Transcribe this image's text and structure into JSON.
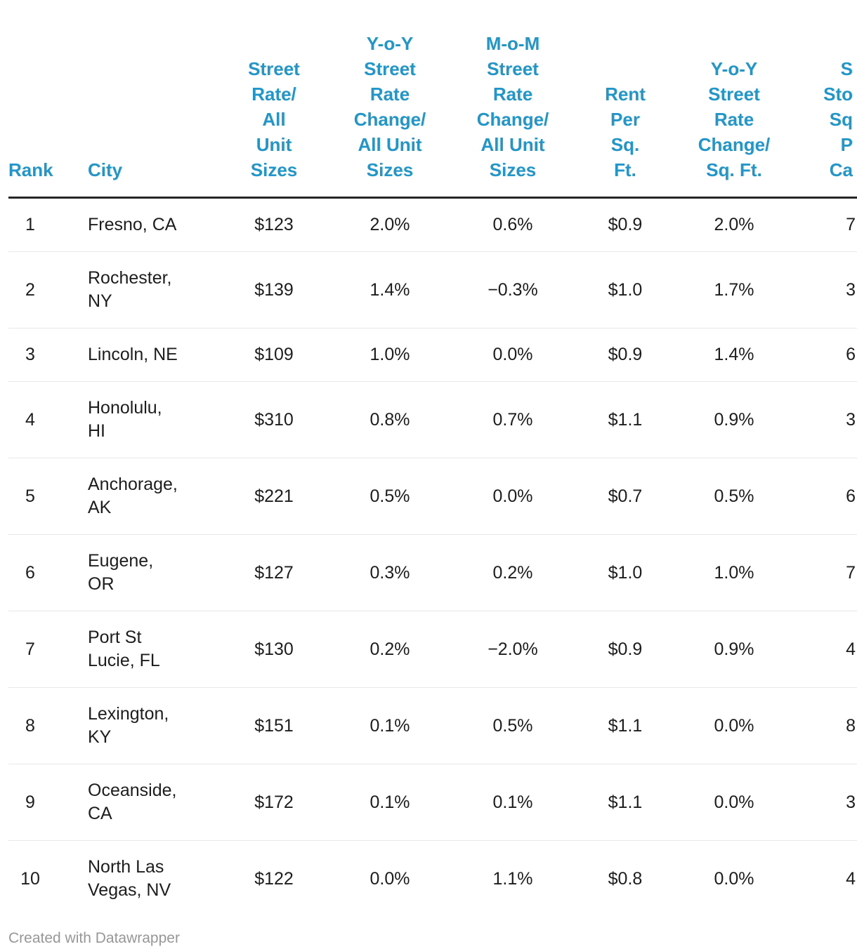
{
  "chart_data": {
    "type": "table",
    "columns": [
      {
        "id": "rank",
        "label": "Rank"
      },
      {
        "id": "city",
        "label": "City"
      },
      {
        "id": "street-rate",
        "label": "Street\nRate/\nAll\nUnit\nSizes"
      },
      {
        "id": "yoy-street-rate",
        "label": "Y-o-Y\nStreet\nRate\nChange/\nAll Unit\nSizes"
      },
      {
        "id": "mom-street-rate",
        "label": "M-o-M\nStreet\nRate\nChange/\nAll Unit\nSizes"
      },
      {
        "id": "rent-per-sqft",
        "label": "Rent\nPer\nSq.\nFt."
      },
      {
        "id": "yoy-per-sqft",
        "label": "Y-o-Y\nStreet\nRate\nChange/\nSq. Ft."
      },
      {
        "id": "truncated-col",
        "label": "S\nSto\nSq\nP\nCa"
      }
    ],
    "rows": [
      [
        "1",
        "Fresno, CA",
        "$123",
        "2.0%",
        "0.6%",
        "$0.9",
        "2.0%",
        "7"
      ],
      [
        "2",
        "Rochester,\nNY",
        "$139",
        "1.4%",
        "−0.3%",
        "$1.0",
        "1.7%",
        "3"
      ],
      [
        "3",
        "Lincoln, NE",
        "$109",
        "1.0%",
        "0.0%",
        "$0.9",
        "1.4%",
        "6"
      ],
      [
        "4",
        "Honolulu,\nHI",
        "$310",
        "0.8%",
        "0.7%",
        "$1.1",
        "0.9%",
        "3"
      ],
      [
        "5",
        "Anchorage,\nAK",
        "$221",
        "0.5%",
        "0.0%",
        "$0.7",
        "0.5%",
        "6"
      ],
      [
        "6",
        "Eugene,\nOR",
        "$127",
        "0.3%",
        "0.2%",
        "$1.0",
        "1.0%",
        "7"
      ],
      [
        "7",
        "Port St\nLucie, FL",
        "$130",
        "0.2%",
        "−2.0%",
        "$0.9",
        "0.9%",
        "4"
      ],
      [
        "8",
        "Lexington,\nKY",
        "$151",
        "0.1%",
        "0.5%",
        "$1.1",
        "0.0%",
        "8"
      ],
      [
        "9",
        "Oceanside,\nCA",
        "$172",
        "0.1%",
        "0.1%",
        "$1.1",
        "0.0%",
        "3"
      ],
      [
        "10",
        "North Las\nVegas, NV",
        "$122",
        "0.0%",
        "1.1%",
        "$0.8",
        "0.0%",
        "4"
      ]
    ],
    "layout_hints": "last column clipped at right edge of image; header text blue, bottom-aligned; thin gray rules between rows; thick dark rule under header"
  },
  "colors": {
    "header_text": "#2196c8",
    "body_text": "#1d1d1d",
    "header_rule": "#262626",
    "row_separator": "#e8e8e8",
    "credit_text": "#979797",
    "background": "#ffffff"
  },
  "footer": {
    "credit": "Created with Datawrapper"
  }
}
